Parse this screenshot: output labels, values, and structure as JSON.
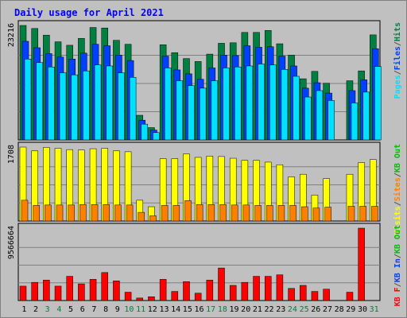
{
  "chart_data": {
    "type": "bar",
    "title": "Daily usage for April 2021",
    "days": [
      "1",
      "2",
      "3",
      "4",
      "5",
      "6",
      "7",
      "8",
      "9",
      "10",
      "11",
      "12",
      "13",
      "14",
      "15",
      "16",
      "17",
      "18",
      "19",
      "20",
      "21",
      "22",
      "23",
      "24",
      "25",
      "26",
      "27",
      "28",
      "29",
      "30",
      "31"
    ],
    "weekend_days": [
      "3",
      "4",
      "10",
      "11",
      "17",
      "18",
      "24",
      "25",
      "31"
    ],
    "panels": [
      {
        "id": "hits-files-pages",
        "scale_max_label": "23216",
        "scale_max": 23216,
        "legend": [
          {
            "name": "Pages",
            "color": "#00e0ff"
          },
          {
            "name": "/",
            "color": "#555555"
          },
          {
            "name": "Files",
            "color": "#0040ff"
          },
          {
            "name": "/",
            "color": "#555555"
          },
          {
            "name": "Hits",
            "color": "#008040"
          }
        ],
        "series": [
          {
            "name": "Hits",
            "color": "#008040",
            "values": [
              23216,
              22600,
              21250,
              19900,
              19200,
              20600,
              22800,
              22700,
              20200,
              19400,
              5000,
              2500,
              19300,
              17700,
              16500,
              15900,
              17400,
              19600,
              19700,
              21800,
              21800,
              22200,
              19500,
              17200,
              12400,
              13900,
              11500,
              0,
              12000,
              14000,
              21300
            ]
          },
          {
            "name": "Files",
            "color": "#0040ff",
            "values": [
              20000,
              18700,
              17500,
              16800,
              16400,
              17600,
              19400,
              19100,
              17200,
              16100,
              4000,
              2000,
              17000,
              14200,
              13400,
              12300,
              14600,
              17200,
              17100,
              19100,
              18800,
              18900,
              17000,
              15000,
              10500,
              11600,
              9500,
              0,
              10000,
              12200,
              18500
            ]
          },
          {
            "name": "Pages",
            "color": "#00e0ff",
            "values": [
              16400,
              15700,
              14800,
              13600,
              13200,
              14000,
              15200,
              15000,
              13600,
              12700,
              3200,
              1500,
              14600,
              12000,
              11000,
              10500,
              12000,
              14600,
              14800,
              15000,
              15400,
              15200,
              14300,
              12900,
              8700,
              10000,
              8000,
              0,
              7500,
              9700,
              14900
            ]
          }
        ]
      },
      {
        "id": "visits-sites",
        "scale_max_label": "1708",
        "scale_max": 1708,
        "legend": [
          {
            "name": "Visits",
            "color": "#ffff00"
          },
          {
            "name": "/",
            "color": "#555555"
          },
          {
            "name": "Sites",
            "color": "#ff8000"
          },
          {
            "name": "/",
            "color": "#555555"
          },
          {
            "name": "KB Out",
            "color": "#00c000"
          }
        ],
        "series": [
          {
            "name": "Visits",
            "color": "#ffff00",
            "values": [
              1708,
              1620,
              1700,
              1680,
              1650,
              1640,
              1670,
              1680,
              1620,
              1600,
              480,
              330,
              1440,
              1440,
              1550,
              1470,
              1500,
              1490,
              1450,
              1400,
              1400,
              1360,
              1300,
              1020,
              1080,
              600,
              980,
              0,
              1080,
              1350,
              1420
            ]
          },
          {
            "name": "Sites",
            "color": "#ff8000",
            "values": [
              480,
              360,
              370,
              370,
              370,
              380,
              380,
              380,
              370,
              370,
              200,
              120,
              360,
              360,
              470,
              380,
              380,
              380,
              370,
              370,
              360,
              360,
              360,
              360,
              330,
              300,
              320,
              0,
              340,
              340,
              340
            ]
          }
        ]
      },
      {
        "id": "kbytes",
        "scale_max_label": "9566664",
        "scale_max": 9566664,
        "legend": [
          {
            "name": "KB F",
            "color": "#ff0000"
          },
          {
            "name": "/",
            "color": "#555555"
          },
          {
            "name": "KB In",
            "color": "#0040ff"
          },
          {
            "name": "/",
            "color": "#555555"
          },
          {
            "name": "KB Out",
            "color": "#00c000"
          }
        ],
        "series": [
          {
            "name": "KB F",
            "color": "#ff0000",
            "values": [
              1900000,
              2400000,
              2700000,
              1900000,
              3200000,
              2200000,
              2800000,
              3700000,
              2600000,
              1100000,
              330000,
              500000,
              2800000,
              1200000,
              2500000,
              970000,
              2700000,
              4300000,
              2000000,
              2400000,
              3200000,
              3200000,
              3400000,
              1600000,
              2000000,
              1200000,
              1500000,
              0,
              1100000,
              9566664,
              0
            ]
          }
        ]
      }
    ],
    "legend_placement": "right",
    "grid": true
  }
}
